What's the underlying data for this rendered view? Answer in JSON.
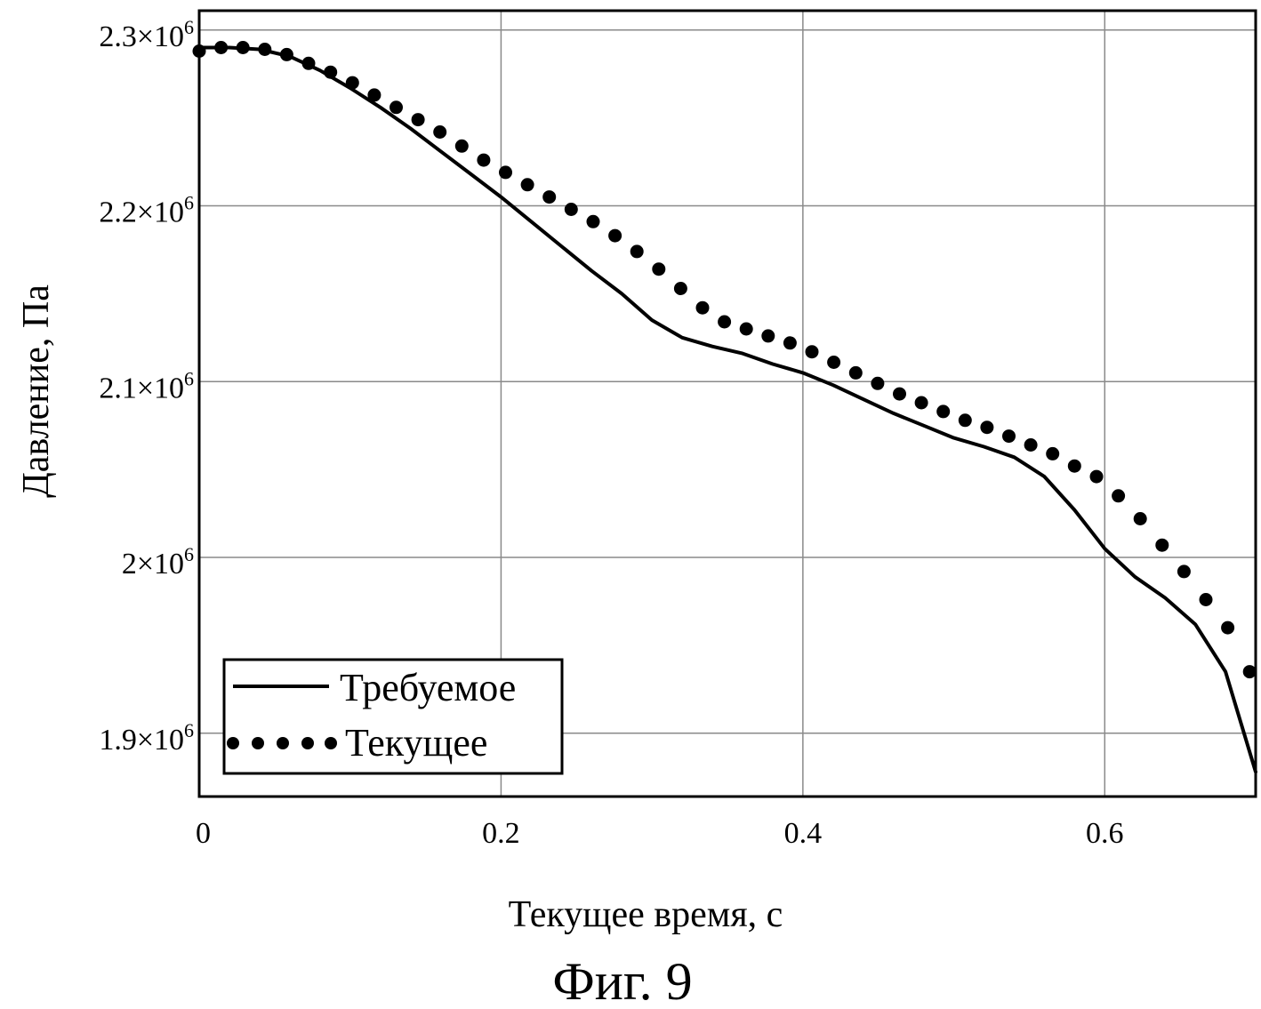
{
  "chart_data": {
    "type": "line",
    "title": "",
    "xlabel": "Текущее время, с",
    "ylabel": "Давление, Па",
    "xlim": [
      0,
      0.7
    ],
    "ylim": [
      1864000,
      2311000
    ],
    "grid": true,
    "legend_position": "bottom-left",
    "x_ticks": [
      {
        "value": 0,
        "label": "0"
      },
      {
        "value": 0.2,
        "label": "0.2"
      },
      {
        "value": 0.4,
        "label": "0.4"
      },
      {
        "value": 0.6,
        "label": "0.6"
      }
    ],
    "y_ticks": [
      {
        "value": 1900000,
        "mant": "1.9",
        "base": "×10",
        "exp": "6"
      },
      {
        "value": 2000000,
        "mant": "2",
        "base": "×10",
        "exp": "6"
      },
      {
        "value": 2100000,
        "mant": "2.1",
        "base": "×10",
        "exp": "6"
      },
      {
        "value": 2200000,
        "mant": "2.2",
        "base": "×10",
        "exp": "6"
      },
      {
        "value": 2300000,
        "mant": "2.3",
        "base": "×10",
        "exp": "6"
      }
    ],
    "series": [
      {
        "name": "Требуемое",
        "style": "solid",
        "color": "#000000",
        "x": [
          0,
          0.02,
          0.04,
          0.06,
          0.08,
          0.1,
          0.12,
          0.14,
          0.16,
          0.18,
          0.2,
          0.22,
          0.24,
          0.26,
          0.28,
          0.3,
          0.32,
          0.34,
          0.36,
          0.38,
          0.4,
          0.42,
          0.44,
          0.46,
          0.48,
          0.5,
          0.52,
          0.54,
          0.56,
          0.58,
          0.6,
          0.62,
          0.64,
          0.66,
          0.68,
          0.7
        ],
        "y": [
          2290000,
          2290000,
          2289000,
          2285000,
          2277000,
          2267000,
          2256000,
          2244000,
          2231000,
          2218000,
          2205000,
          2191000,
          2177000,
          2163000,
          2150000,
          2135000,
          2125000,
          2120000,
          2116000,
          2110000,
          2105000,
          2098000,
          2090000,
          2082000,
          2075000,
          2068000,
          2063000,
          2057000,
          2046000,
          2027000,
          2005000,
          1989000,
          1977000,
          1962000,
          1935000,
          1878000
        ]
      },
      {
        "name": "Текущее",
        "style": "dotted",
        "color": "#000000",
        "x": [
          0,
          0.0145,
          0.029,
          0.0435,
          0.058,
          0.0725,
          0.087,
          0.1015,
          0.116,
          0.1305,
          0.145,
          0.1595,
          0.174,
          0.1885,
          0.203,
          0.2175,
          0.232,
          0.2465,
          0.261,
          0.2755,
          0.29,
          0.3045,
          0.319,
          0.3335,
          0.348,
          0.3625,
          0.377,
          0.3915,
          0.406,
          0.4205,
          0.435,
          0.4495,
          0.464,
          0.4785,
          0.493,
          0.5075,
          0.522,
          0.5365,
          0.551,
          0.5655,
          0.58,
          0.5945,
          0.609,
          0.6235,
          0.638,
          0.6525,
          0.667,
          0.6815,
          0.696
        ],
        "y": [
          2288000,
          2290000,
          2290000,
          2289000,
          2286000,
          2281000,
          2276000,
          2270000,
          2263000,
          2256000,
          2249000,
          2242000,
          2234000,
          2226000,
          2219000,
          2212000,
          2205000,
          2198000,
          2191000,
          2183000,
          2174000,
          2164000,
          2153000,
          2142000,
          2134000,
          2130000,
          2126000,
          2122000,
          2117000,
          2111000,
          2105000,
          2099000,
          2093000,
          2088000,
          2083000,
          2078000,
          2074000,
          2069000,
          2064000,
          2059000,
          2052000,
          2046000,
          2035000,
          2022000,
          2007000,
          1992000,
          1976000,
          1960000,
          1935000
        ]
      }
    ]
  },
  "caption": "Фиг. 9"
}
